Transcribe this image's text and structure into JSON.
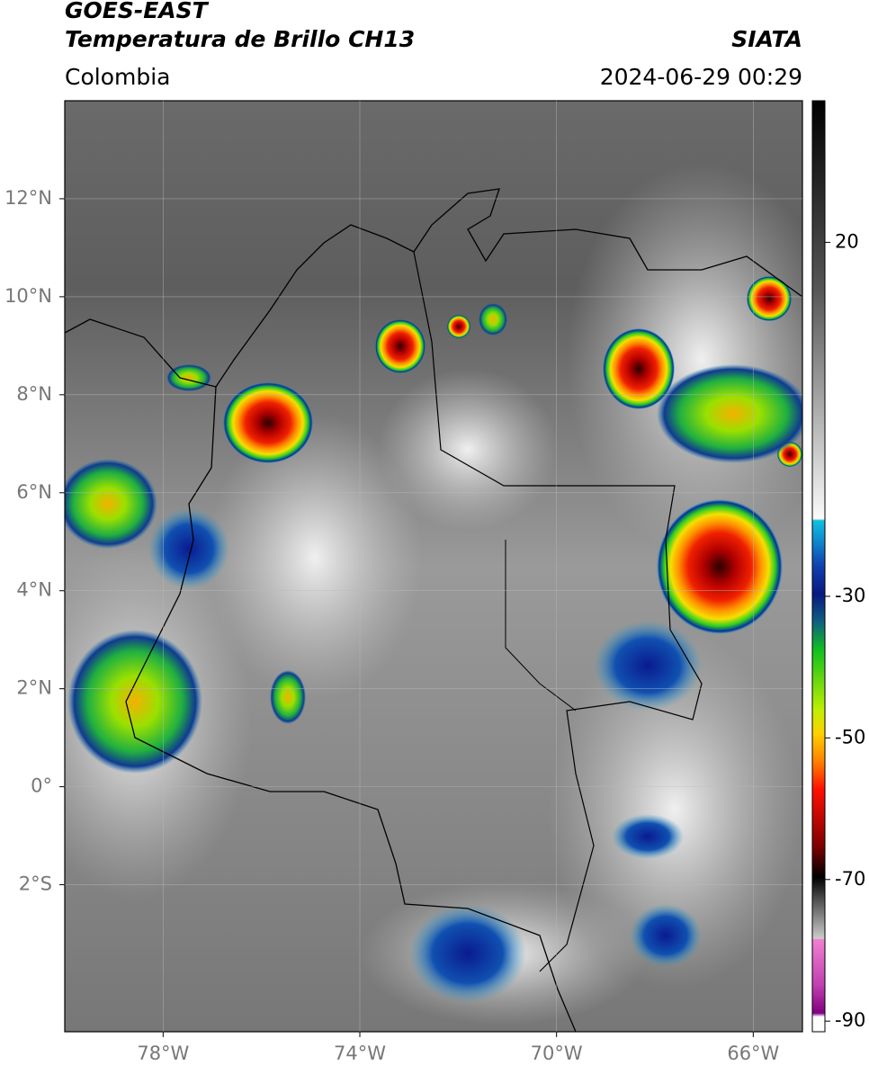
{
  "header": {
    "title": "GOES-EAST",
    "subtitle": "Temperatura de Brillo CH13",
    "source": "SIATA",
    "region": "Colombia",
    "timestamp": "2024-06-29 00:29"
  },
  "map": {
    "xlim": [
      -80,
      -65
    ],
    "ylim": [
      -5,
      14
    ],
    "grid": true,
    "xticks": [
      {
        "value": -78,
        "label": "78°W"
      },
      {
        "value": -74,
        "label": "74°W"
      },
      {
        "value": -70,
        "label": "70°W"
      },
      {
        "value": -66,
        "label": "66°W"
      }
    ],
    "yticks": [
      {
        "value": 12,
        "label": "12°N"
      },
      {
        "value": 10,
        "label": "10°N"
      },
      {
        "value": 8,
        "label": "8°N"
      },
      {
        "value": 6,
        "label": "6°N"
      },
      {
        "value": 4,
        "label": "4°N"
      },
      {
        "value": 2,
        "label": "2°N"
      },
      {
        "value": 0,
        "label": "0°"
      },
      {
        "value": -2,
        "label": "2°S"
      }
    ]
  },
  "colorbar": {
    "lim": [
      -91.5,
      40
    ],
    "ticks": [
      20,
      -30,
      -50,
      -70,
      -90
    ]
  }
}
